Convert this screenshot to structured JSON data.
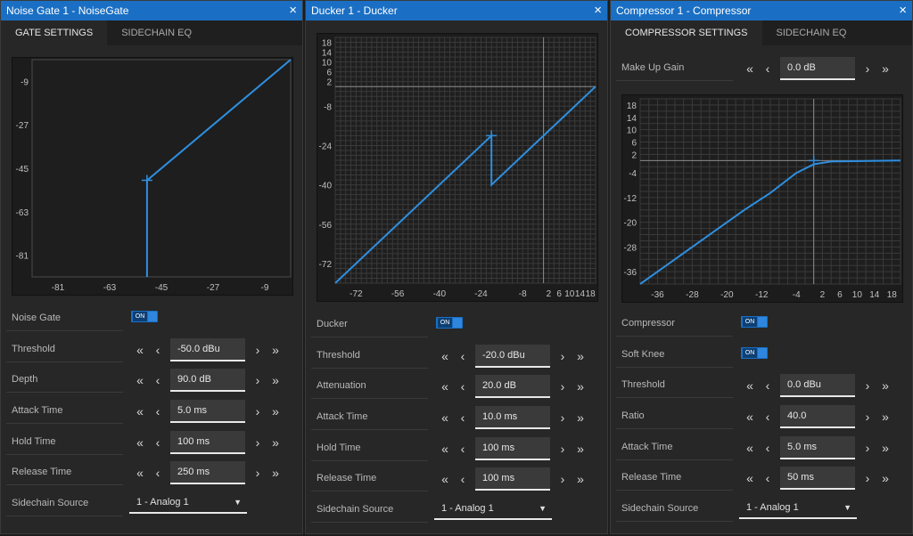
{
  "panels": [
    {
      "title": "Noise Gate 1 - NoiseGate",
      "tabs": [
        "GATE SETTINGS",
        "SIDECHAIN EQ"
      ],
      "graph": {
        "y_ticks": [
          "-9",
          "-27",
          "-45",
          "-63",
          "-81"
        ],
        "x_ticks": [
          "-81",
          "-63",
          "-45",
          "-27",
          "-9"
        ]
      },
      "rows": [
        {
          "label": "Noise Gate",
          "type": "toggle",
          "value": "ON"
        },
        {
          "label": "Threshold",
          "type": "value",
          "value": "-50.0 dBu"
        },
        {
          "label": "Depth",
          "type": "value",
          "value": "90.0 dB"
        },
        {
          "label": "Attack Time",
          "type": "value",
          "value": "5.0 ms"
        },
        {
          "label": "Hold Time",
          "type": "value",
          "value": "100 ms"
        },
        {
          "label": "Release Time",
          "type": "value",
          "value": "250 ms"
        },
        {
          "label": "Sidechain Source",
          "type": "select",
          "value": "1 - Analog 1"
        }
      ]
    },
    {
      "title": "Ducker 1 - Ducker",
      "tabs": [],
      "graph": {
        "y_ticks": [
          "18",
          "14",
          "10",
          "6",
          "2",
          "-8",
          "-24",
          "-40",
          "-56",
          "-72"
        ],
        "x_ticks": [
          "-72",
          "-56",
          "-40",
          "-24",
          "-8",
          "2",
          "6",
          "10",
          "14",
          "18"
        ]
      },
      "rows": [
        {
          "label": "Ducker",
          "type": "toggle",
          "value": "ON"
        },
        {
          "label": "Threshold",
          "type": "value",
          "value": "-20.0 dBu"
        },
        {
          "label": "Attenuation",
          "type": "value",
          "value": "20.0 dB"
        },
        {
          "label": "Attack Time",
          "type": "value",
          "value": "10.0 ms"
        },
        {
          "label": "Hold Time",
          "type": "value",
          "value": "100 ms"
        },
        {
          "label": "Release Time",
          "type": "value",
          "value": "100 ms"
        },
        {
          "label": "Sidechain Source",
          "type": "select",
          "value": "1 - Analog 1"
        }
      ]
    },
    {
      "title": "Compressor 1 - Compressor",
      "tabs": [
        "COMPRESSOR SETTINGS",
        "SIDECHAIN EQ"
      ],
      "makeup": {
        "label": "Make Up Gain",
        "value": "0.0 dB"
      },
      "graph": {
        "y_ticks": [
          "18",
          "14",
          "10",
          "6",
          "2",
          "-4",
          "-12",
          "-20",
          "-28",
          "-36"
        ],
        "x_ticks": [
          "-36",
          "-28",
          "-20",
          "-12",
          "-4",
          "2",
          "6",
          "10",
          "14",
          "18"
        ]
      },
      "rows": [
        {
          "label": "Compressor",
          "type": "toggle",
          "value": "ON"
        },
        {
          "label": "Soft Knee",
          "type": "toggle",
          "value": "ON"
        },
        {
          "label": "Threshold",
          "type": "value",
          "value": "0.0 dBu"
        },
        {
          "label": "Ratio",
          "type": "value",
          "value": "40.0"
        },
        {
          "label": "Attack Time",
          "type": "value",
          "value": "5.0 ms"
        },
        {
          "label": "Release Time",
          "type": "value",
          "value": "50 ms"
        },
        {
          "label": "Sidechain Source",
          "type": "select",
          "value": "1 - Analog 1"
        }
      ]
    }
  ],
  "icons": {
    "close": "×",
    "fast_left": "«",
    "left": "‹",
    "right": "›",
    "fast_right": "»",
    "caret": "▼"
  },
  "colors": {
    "accent": "#1a6fc4",
    "curve": "#2e8fe0"
  }
}
